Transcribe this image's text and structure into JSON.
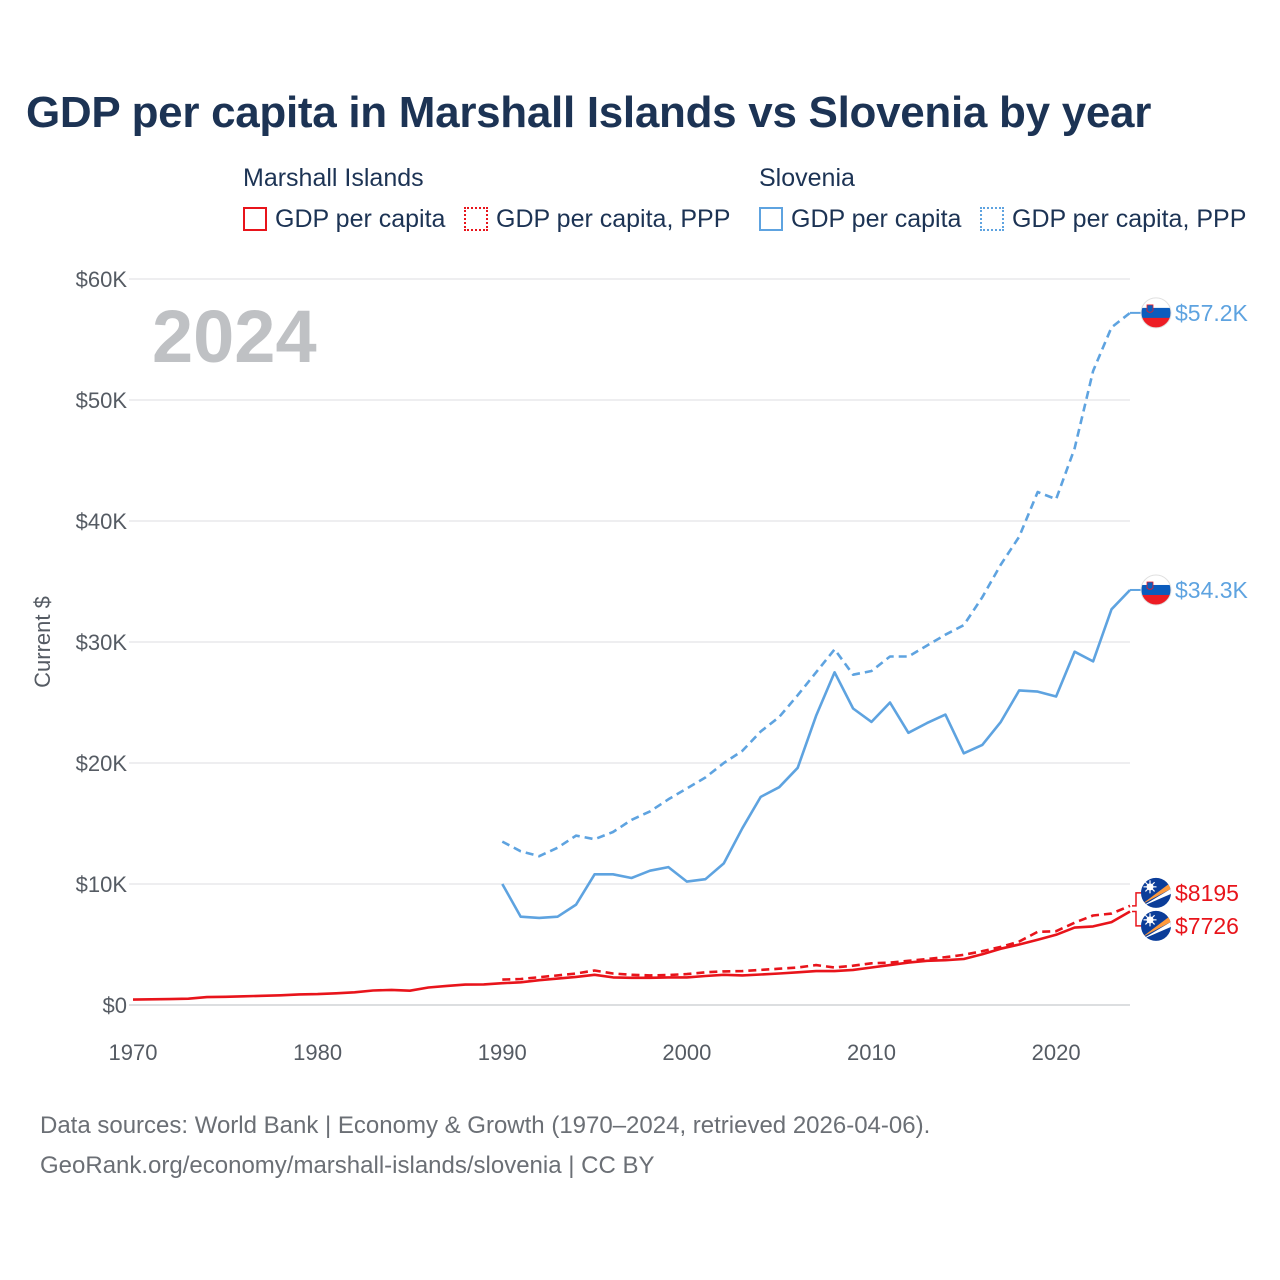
{
  "title": "GDP per capita in Marshall Islands vs Slovenia by year",
  "year_watermark": "2024",
  "legend": {
    "groups": [
      {
        "name": "Marshall Islands",
        "color": "#e8141b",
        "items": [
          {
            "label": "GDP per capita",
            "style": "solid"
          },
          {
            "label": "GDP per capita, PPP",
            "style": "dotted"
          }
        ]
      },
      {
        "name": "Slovenia",
        "color": "#5ea3e0",
        "items": [
          {
            "label": "GDP per capita",
            "style": "solid"
          },
          {
            "label": "GDP per capita, PPP",
            "style": "dotted"
          }
        ]
      }
    ]
  },
  "source": {
    "line1": "Data sources: World Bank | Economy & Growth (1970–2024, retrieved 2026-04-06).",
    "line2": "GeoRank.org/economy/marshall-islands/slovenia | CC BY"
  },
  "chart_data": {
    "type": "line",
    "title": "GDP per capita in Marshall Islands vs Slovenia by year",
    "xlabel": "",
    "ylabel": "Current $",
    "xlim": [
      1970,
      2024
    ],
    "ylim": [
      0,
      60000
    ],
    "x_ticks": [
      1970,
      1980,
      1990,
      2000,
      2010,
      2020
    ],
    "x_tick_labels": [
      "1970",
      "1980",
      "1990",
      "2000",
      "2010",
      "2020"
    ],
    "y_ticks": [
      0,
      10000,
      20000,
      30000,
      40000,
      50000,
      60000
    ],
    "y_tick_labels": [
      "$0",
      "$10K",
      "$20K",
      "$30K",
      "$40K",
      "$50K",
      "$60K"
    ],
    "grid": true,
    "series": [
      {
        "name": "Slovenia GDP per capita, PPP",
        "country": "Slovenia",
        "color": "#5ea3e0",
        "dash": "dashed",
        "end_label": "$57.2K",
        "x_start": 1990,
        "values": [
          13500,
          12700,
          12300,
          13000,
          14000,
          13700,
          14300,
          15300,
          16000,
          17000,
          17900,
          18800,
          20000,
          21000,
          22600,
          23800,
          25600,
          27500,
          29400,
          27300,
          27600,
          28800,
          28800,
          29700,
          30600,
          31400,
          33700,
          36400,
          38700,
          42400,
          41800,
          46000,
          52400,
          56000,
          57200
        ]
      },
      {
        "name": "Slovenia GDP per capita",
        "country": "Slovenia",
        "color": "#5ea3e0",
        "dash": "solid",
        "end_label": "$34.3K",
        "x_start": 1990,
        "values": [
          10000,
          7300,
          7200,
          7300,
          8300,
          10800,
          10800,
          10500,
          11100,
          11400,
          10200,
          10400,
          11700,
          14600,
          17200,
          18000,
          19600,
          23900,
          27500,
          24500,
          23400,
          25000,
          22500,
          23300,
          24000,
          20800,
          21500,
          23400,
          26000,
          25900,
          25500,
          29200,
          28400,
          32700,
          34300
        ]
      },
      {
        "name": "Marshall Islands GDP per capita, PPP",
        "country": "Marshall Islands",
        "color": "#e8141b",
        "dash": "dashed",
        "end_label": "$8195",
        "x_start": 1990,
        "values": [
          2100,
          2150,
          2300,
          2450,
          2600,
          2850,
          2600,
          2500,
          2450,
          2480,
          2550,
          2700,
          2780,
          2800,
          2900,
          3000,
          3100,
          3300,
          3100,
          3250,
          3450,
          3500,
          3650,
          3800,
          3950,
          4150,
          4450,
          4800,
          5250,
          6050,
          6100,
          6800,
          7400,
          7550,
          8195
        ]
      },
      {
        "name": "Marshall Islands GDP per capita",
        "country": "Marshall Islands",
        "color": "#e8141b",
        "dash": "solid",
        "end_label": "$7726",
        "x_start": 1970,
        "values": [
          450,
          470,
          490,
          520,
          650,
          680,
          720,
          760,
          800,
          880,
          900,
          970,
          1050,
          1200,
          1250,
          1180,
          1450,
          1580,
          1690,
          1700,
          1800,
          1880,
          2050,
          2180,
          2320,
          2500,
          2280,
          2250,
          2250,
          2280,
          2280,
          2400,
          2500,
          2450,
          2520,
          2600,
          2700,
          2800,
          2800,
          2900,
          3100,
          3300,
          3500,
          3650,
          3700,
          3800,
          4200,
          4650,
          5000,
          5400,
          5800,
          6400,
          6500,
          6850,
          7726
        ]
      }
    ]
  }
}
